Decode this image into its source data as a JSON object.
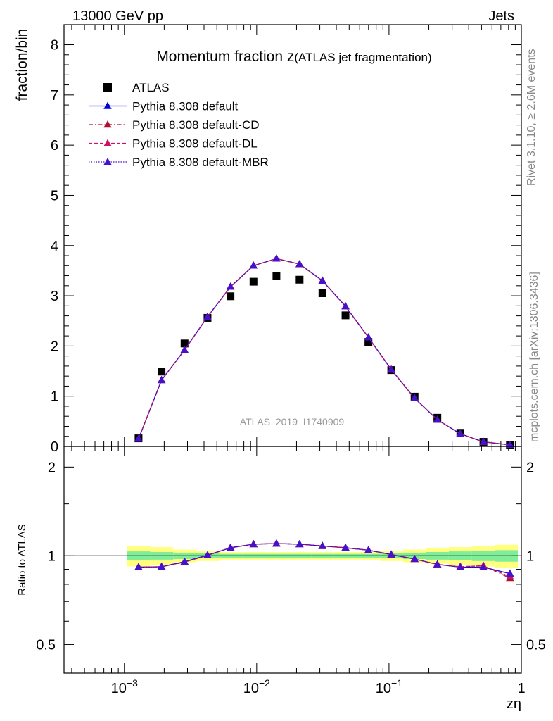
{
  "header": {
    "left": "13000 GeV pp",
    "right": "Jets",
    "side_top": "Rivet 3.1.10, ≥ 2.6M events",
    "side_bottom": "mcplots.cern.ch [arXiv:1306.3436]",
    "analysis_id": "ATLAS_2019_I1740909"
  },
  "chart_data": [
    {
      "type": "line",
      "title_main": "Momentum fraction z",
      "title_sub": "(ATLAS jet fragmentation)",
      "xlabel": "zη",
      "ylabel": "fraction/bin",
      "x_scale": "log",
      "xlim": [
        0.00035,
        1.0
      ],
      "ylim": [
        0,
        8.4
      ],
      "y_ticks": [
        "0",
        "1",
        "2",
        "3",
        "4",
        "5",
        "6",
        "7",
        "8"
      ],
      "legend_position": "top-left",
      "x": [
        0.00128,
        0.00191,
        0.00285,
        0.00425,
        0.00634,
        0.00946,
        0.0141,
        0.0211,
        0.0314,
        0.0469,
        0.0699,
        0.104,
        0.156,
        0.232,
        0.346,
        0.517,
        0.82
      ],
      "series": [
        {
          "name": "ATLAS",
          "style": "data",
          "color": "#000000",
          "values": [
            0.16,
            1.49,
            2.05,
            2.56,
            2.99,
            3.28,
            3.39,
            3.32,
            3.05,
            2.61,
            2.08,
            1.52,
            0.99,
            0.57,
            0.27,
            0.09,
            0.03
          ]
        },
        {
          "name": "Pythia 8.308 default",
          "style": "solid",
          "color": "#0000dd",
          "values": [
            0.15,
            1.32,
            1.92,
            2.58,
            3.18,
            3.6,
            3.74,
            3.63,
            3.3,
            2.79,
            2.17,
            1.53,
            0.96,
            0.53,
            0.25,
            0.09,
            0.03
          ]
        },
        {
          "name": "Pythia 8.308 default-CD",
          "style": "dashdot",
          "color": "#aa1133",
          "values": [
            0.15,
            1.32,
            1.92,
            2.58,
            3.18,
            3.6,
            3.74,
            3.63,
            3.3,
            2.79,
            2.17,
            1.53,
            0.96,
            0.53,
            0.25,
            0.09,
            0.03
          ]
        },
        {
          "name": "Pythia 8.308 default-DL",
          "style": "dashed",
          "color": "#cc1166",
          "values": [
            0.15,
            1.32,
            1.92,
            2.58,
            3.18,
            3.6,
            3.74,
            3.63,
            3.3,
            2.79,
            2.17,
            1.53,
            0.96,
            0.53,
            0.25,
            0.09,
            0.03
          ]
        },
        {
          "name": "Pythia 8.308 default-MBR",
          "style": "dotted",
          "color": "#4411cc",
          "values": [
            0.15,
            1.32,
            1.92,
            2.58,
            3.18,
            3.6,
            3.74,
            3.63,
            3.3,
            2.79,
            2.17,
            1.53,
            0.96,
            0.53,
            0.25,
            0.09,
            0.03
          ]
        }
      ]
    },
    {
      "type": "line",
      "xlabel": "zη",
      "ylabel": "Ratio to ATLAS",
      "x_scale": "log",
      "xlim": [
        0.00035,
        1.0
      ],
      "ylim": [
        0.4,
        2.35
      ],
      "x_ticks": [
        {
          "value": 0.001,
          "base": "10",
          "exp": "−3"
        },
        {
          "value": 0.01,
          "base": "10",
          "exp": "−2"
        },
        {
          "value": 0.1,
          "base": "10",
          "exp": "−1"
        },
        {
          "value": 1.0,
          "base": "1",
          "exp": ""
        }
      ],
      "y_ticks": [
        {
          "value": 0.5,
          "label": "0.5"
        },
        {
          "value": 1.0,
          "label": "1"
        },
        {
          "value": 2.0,
          "label": "2"
        }
      ],
      "reference_line": 1.0,
      "x": [
        0.00128,
        0.00191,
        0.00285,
        0.00425,
        0.00634,
        0.00946,
        0.0141,
        0.0211,
        0.0314,
        0.0469,
        0.0699,
        0.104,
        0.156,
        0.232,
        0.346,
        0.517,
        0.82
      ],
      "bin_edges": [
        0.00105,
        0.00157,
        0.00234,
        0.00349,
        0.0052,
        0.00776,
        0.0116,
        0.0173,
        0.0258,
        0.0384,
        0.0573,
        0.0855,
        0.128,
        0.19,
        0.283,
        0.423,
        0.631,
        0.94
      ],
      "band_outer": {
        "color": "#ffff80",
        "lo": [
          0.92,
          0.93,
          0.95,
          0.96,
          0.97,
          0.97,
          0.97,
          0.97,
          0.97,
          0.97,
          0.97,
          0.96,
          0.95,
          0.94,
          0.93,
          0.92,
          0.91
        ],
        "hi": [
          1.08,
          1.07,
          1.05,
          1.04,
          1.03,
          1.03,
          1.03,
          1.03,
          1.03,
          1.03,
          1.03,
          1.04,
          1.05,
          1.06,
          1.07,
          1.08,
          1.09
        ]
      },
      "band_inner": {
        "color": "#80ee99",
        "lo": [
          0.965,
          0.97,
          0.975,
          0.98,
          0.985,
          0.985,
          0.985,
          0.985,
          0.985,
          0.985,
          0.985,
          0.98,
          0.975,
          0.97,
          0.965,
          0.96,
          0.955
        ],
        "hi": [
          1.035,
          1.03,
          1.025,
          1.02,
          1.015,
          1.015,
          1.015,
          1.015,
          1.015,
          1.015,
          1.015,
          1.02,
          1.025,
          1.03,
          1.035,
          1.04,
          1.045
        ]
      },
      "series": [
        {
          "name": "Pythia 8.308 default",
          "style": "solid",
          "color": "#0000dd",
          "values": [
            0.915,
            0.918,
            0.955,
            1.005,
            1.065,
            1.095,
            1.1,
            1.095,
            1.08,
            1.065,
            1.045,
            1.01,
            0.975,
            0.935,
            0.915,
            0.915,
            0.87
          ]
        },
        {
          "name": "Pythia 8.308 default-CD",
          "style": "dashdot",
          "color": "#aa1133",
          "values": [
            0.915,
            0.918,
            0.952,
            1.003,
            1.065,
            1.095,
            1.1,
            1.095,
            1.08,
            1.065,
            1.045,
            1.01,
            0.975,
            0.935,
            0.918,
            0.925,
            0.84
          ]
        },
        {
          "name": "Pythia 8.308 default-DL",
          "style": "dashed",
          "color": "#cc1166",
          "values": [
            0.915,
            0.918,
            0.952,
            1.003,
            1.065,
            1.095,
            1.1,
            1.095,
            1.08,
            1.065,
            1.045,
            1.01,
            0.975,
            0.935,
            0.918,
            0.925,
            0.85
          ]
        },
        {
          "name": "Pythia 8.308 default-MBR",
          "style": "dotted",
          "color": "#4411cc",
          "values": [
            0.915,
            0.918,
            0.955,
            1.005,
            1.065,
            1.095,
            1.1,
            1.095,
            1.08,
            1.065,
            1.045,
            1.01,
            0.975,
            0.935,
            0.915,
            0.915,
            0.87
          ]
        }
      ]
    }
  ]
}
